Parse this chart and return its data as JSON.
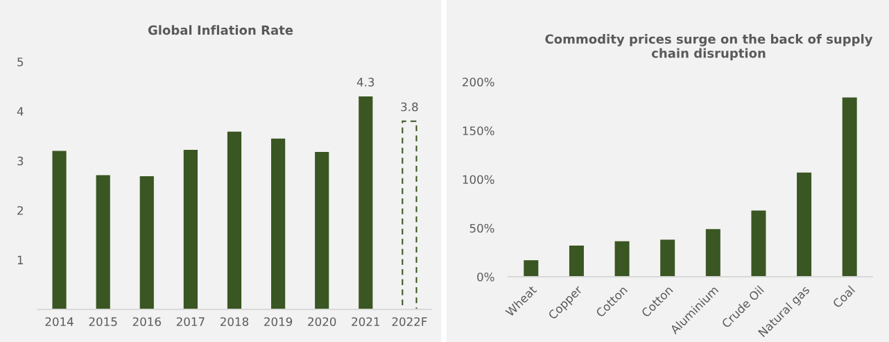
{
  "chart_data": [
    {
      "type": "bar",
      "title": "Global Inflation Rate",
      "categories": [
        "2014",
        "2015",
        "2016",
        "2017",
        "2018",
        "2019",
        "2020",
        "2021",
        "2022F"
      ],
      "series": [
        {
          "color": "#3a5622",
          "values": [
            3.2,
            2.71,
            2.69,
            3.22,
            3.59,
            3.45,
            3.18,
            4.3,
            null
          ],
          "value_labels": [
            null,
            null,
            null,
            null,
            null,
            null,
            null,
            "4.3",
            null
          ]
        },
        {
          "color": "#3a5622",
          "line_style": "dashed",
          "values": [
            null,
            null,
            null,
            null,
            null,
            null,
            null,
            null,
            3.8
          ],
          "value_labels": [
            null,
            null,
            null,
            null,
            null,
            null,
            null,
            null,
            "3.8"
          ]
        }
      ],
      "ylim": [
        0,
        5
      ],
      "yticks": [
        1,
        2,
        3,
        4,
        5
      ],
      "grid": false,
      "legend": false
    },
    {
      "type": "bar",
      "title": "Commodity prices surge on the back of supply chain disruption",
      "categories": [
        "Wheat",
        "Copper",
        "Cotton",
        "Cotton",
        "Aluminium",
        "Crude Oil",
        "Natural gas",
        "Coal"
      ],
      "series": [
        {
          "color": "#3a5622",
          "values": [
            17,
            32,
            36.5,
            38,
            49,
            68,
            107,
            184
          ]
        }
      ],
      "ylim": [
        0,
        200
      ],
      "yticks": [
        {
          "value": 0,
          "label": "0%"
        },
        {
          "value": 50,
          "label": "50%"
        },
        {
          "value": 100,
          "label": "100%"
        },
        {
          "value": 150,
          "label": "150%"
        },
        {
          "value": 200,
          "label": "200%"
        }
      ],
      "grid": false,
      "legend": false
    }
  ]
}
